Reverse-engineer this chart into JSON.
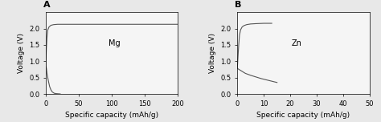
{
  "panel_A": {
    "label": "A",
    "ion": "Mg",
    "xlabel": "Specific capacity (mAh/g)",
    "ylabel": "Voltage (V)",
    "xlim": [
      0,
      200
    ],
    "ylim": [
      0.0,
      2.5
    ],
    "yticks": [
      0.0,
      0.5,
      1.0,
      1.5,
      2.0
    ],
    "xticks": [
      0,
      50,
      100,
      150,
      200
    ]
  },
  "panel_B": {
    "label": "B",
    "ion": "Zn",
    "xlabel": "Specific capacity (mAh/g)",
    "ylabel": "Voltage (V)",
    "xlim": [
      0,
      50
    ],
    "ylim": [
      0.0,
      2.5
    ],
    "yticks": [
      0.0,
      0.5,
      1.0,
      1.5,
      2.0
    ],
    "xticks": [
      0,
      10,
      20,
      30,
      40,
      50
    ]
  },
  "line_color": "#555555",
  "fig_background": "#e8e8e8",
  "ax_background": "#f5f5f5",
  "label_fontsize": 6.5,
  "tick_fontsize": 6,
  "ion_fontsize": 7,
  "panel_label_fontsize": 8
}
